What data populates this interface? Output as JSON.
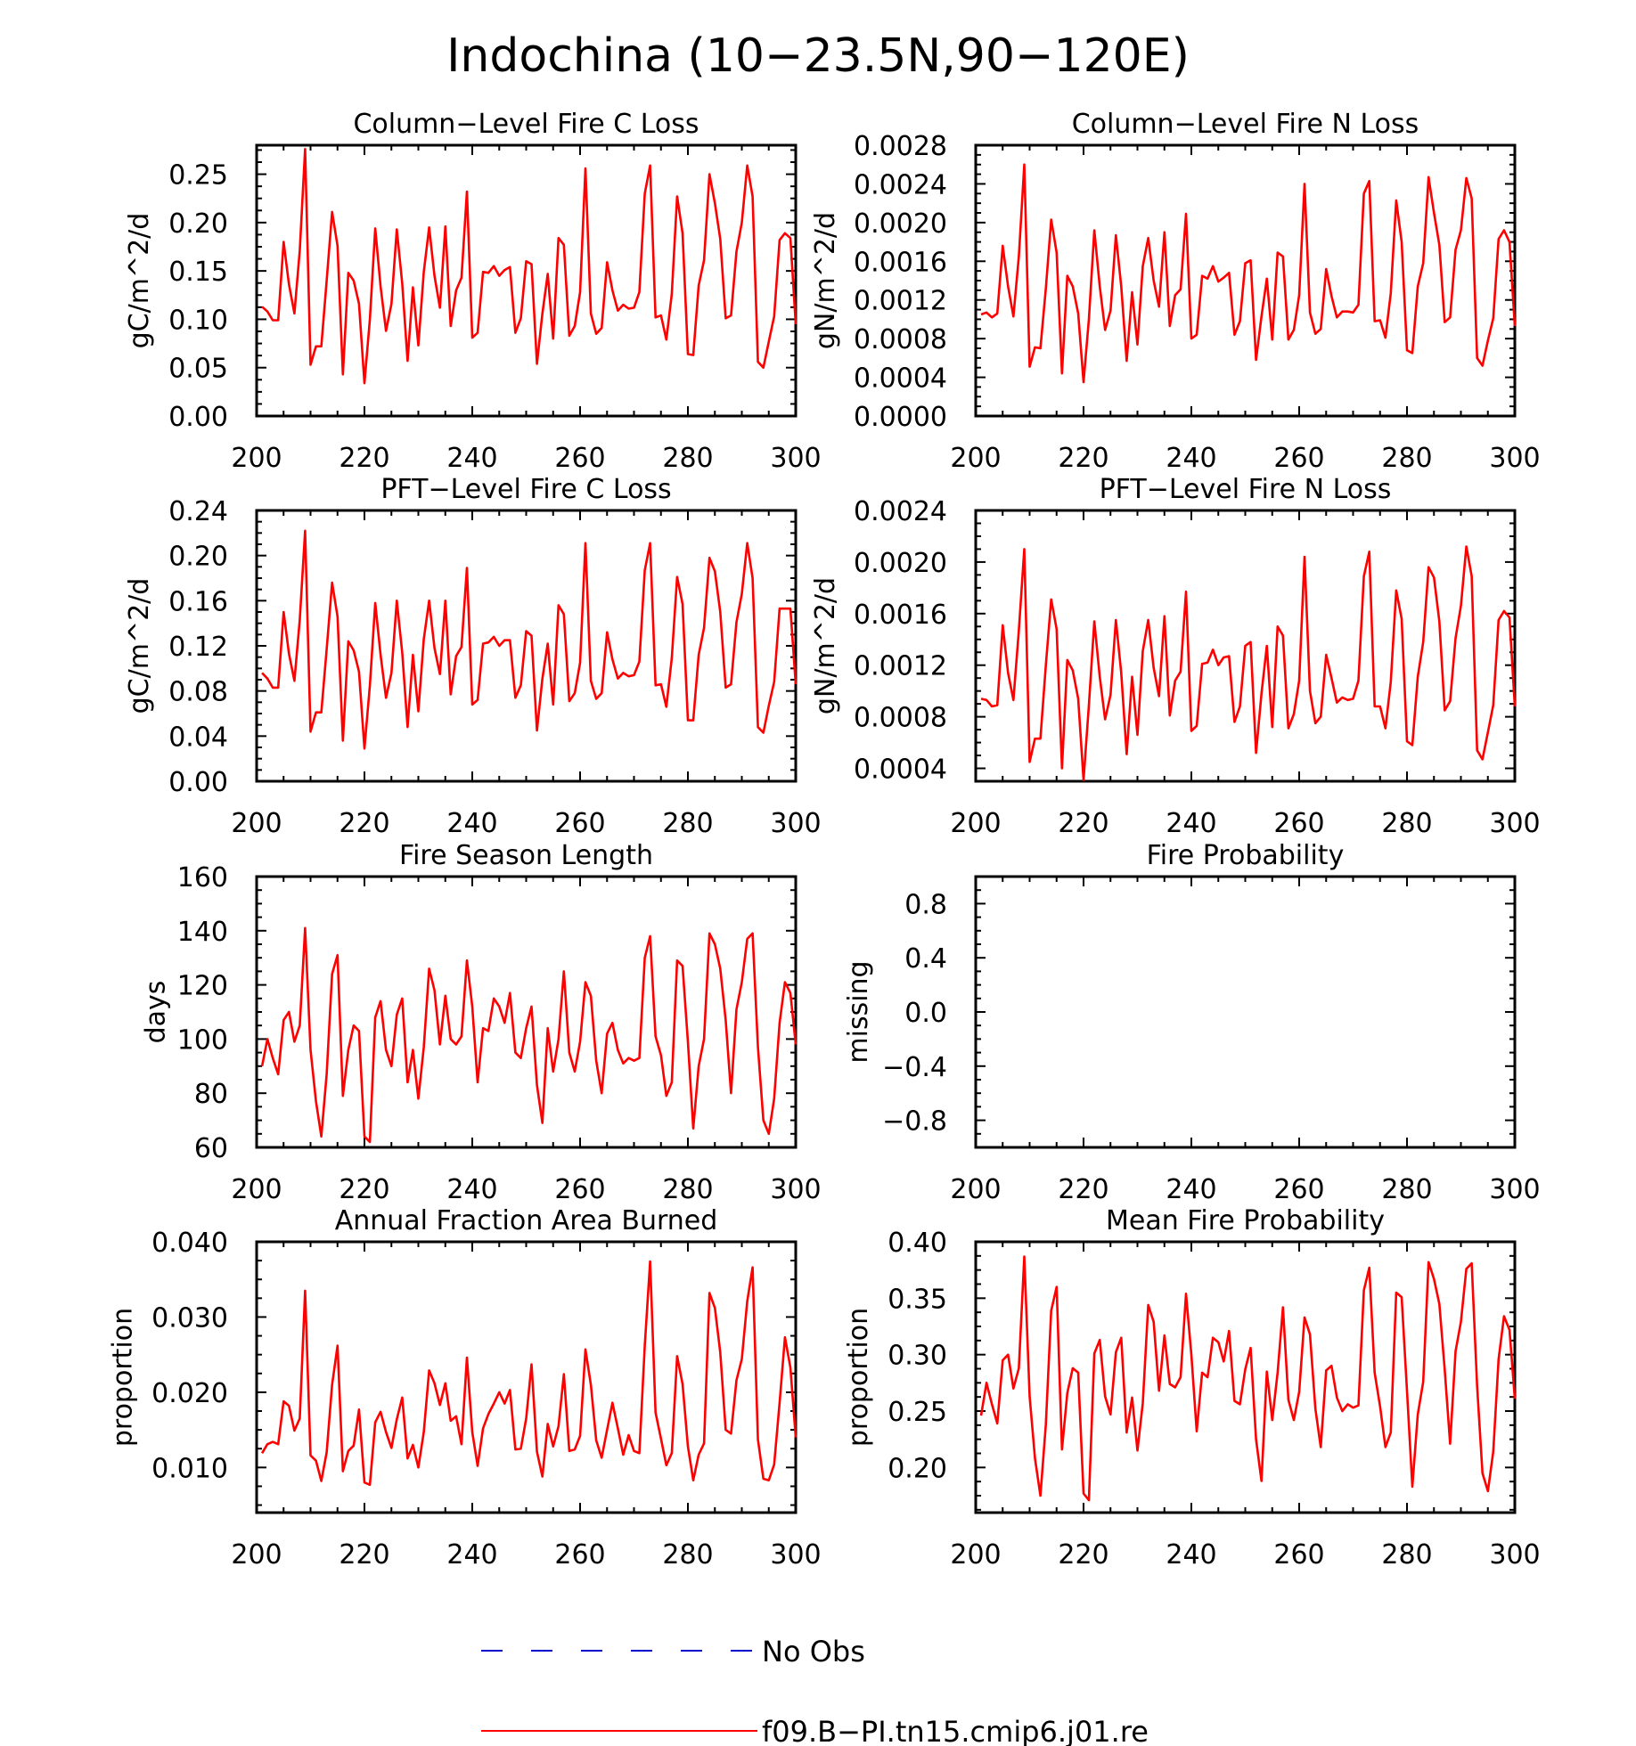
{
  "figure": {
    "title": "Indochina (10−23.5N,90−120E)",
    "legend": [
      {
        "label": "No Obs",
        "color": "#0000cc",
        "style": "dashed"
      },
      {
        "label": "f09.B−PI.tn15.cmip6.j01.re",
        "color": "#ff0000",
        "style": "solid"
      }
    ],
    "line_color": "#ff0000"
  },
  "chart_data": [
    {
      "type": "line",
      "title": "Column−Level Fire C Loss",
      "ylabel": "gC/m^2/d",
      "xlim": [
        200,
        300
      ],
      "ylim": [
        0,
        0.28
      ],
      "xticks": [
        "200",
        "220",
        "240",
        "260",
        "280",
        "300"
      ],
      "yticks": [
        "0.00",
        "0.05",
        "0.10",
        "0.15",
        "0.20",
        "0.25"
      ],
      "series": [
        {
          "x_start": 201,
          "values": [
            0.113,
            0.108,
            0.099,
            0.099,
            0.18,
            0.136,
            0.106,
            0.171,
            0.276,
            0.053,
            0.072,
            0.072,
            0.14,
            0.211,
            0.176,
            0.043,
            0.148,
            0.14,
            0.116,
            0.034,
            0.1,
            0.194,
            0.134,
            0.088,
            0.116,
            0.193,
            0.137,
            0.057,
            0.133,
            0.073,
            0.149,
            0.195,
            0.145,
            0.112,
            0.196,
            0.093,
            0.13,
            0.143,
            0.232,
            0.081,
            0.086,
            0.149,
            0.148,
            0.155,
            0.145,
            0.151,
            0.154,
            0.086,
            0.101,
            0.16,
            0.157,
            0.054,
            0.106,
            0.147,
            0.08,
            0.184,
            0.177,
            0.083,
            0.093,
            0.128,
            0.256,
            0.106,
            0.085,
            0.091,
            0.159,
            0.13,
            0.109,
            0.115,
            0.111,
            0.112,
            0.128,
            0.23,
            0.259,
            0.102,
            0.104,
            0.079,
            0.126,
            0.227,
            0.189,
            0.064,
            0.063,
            0.135,
            0.161,
            0.25,
            0.22,
            0.183,
            0.101,
            0.104,
            0.17,
            0.2,
            0.259,
            0.227,
            0.056,
            0.05,
            0.077,
            0.103,
            0.182,
            0.189,
            0.184,
            0.095
          ]
        }
      ]
    },
    {
      "type": "line",
      "title": "Column−Level Fire N Loss",
      "ylabel": "gN/m^2/d",
      "xlim": [
        200,
        300
      ],
      "ylim": [
        0,
        0.0028
      ],
      "xticks": [
        "200",
        "220",
        "240",
        "260",
        "280",
        "300"
      ],
      "yticks": [
        "0.0000",
        "0.0004",
        "0.0008",
        "0.0012",
        "0.0016",
        "0.0020",
        "0.0024",
        "0.0028"
      ],
      "series": [
        {
          "x_start": 201,
          "values": [
            0.00105,
            0.00107,
            0.00102,
            0.00106,
            0.00176,
            0.00134,
            0.00103,
            0.00165,
            0.0026,
            0.00051,
            0.00071,
            0.0007,
            0.00132,
            0.00203,
            0.00169,
            0.00044,
            0.00145,
            0.00134,
            0.00106,
            0.00035,
            0.001,
            0.00192,
            0.00134,
            0.00089,
            0.00109,
            0.00187,
            0.00134,
            0.00057,
            0.00128,
            0.00074,
            0.00155,
            0.00184,
            0.0014,
            0.00113,
            0.0019,
            0.00093,
            0.00125,
            0.00131,
            0.00209,
            0.0008,
            0.00084,
            0.00145,
            0.00142,
            0.00155,
            0.00139,
            0.00143,
            0.00148,
            0.00084,
            0.00098,
            0.00158,
            0.00161,
            0.00058,
            0.00103,
            0.00142,
            0.00079,
            0.00169,
            0.00165,
            0.00079,
            0.00089,
            0.00125,
            0.0024,
            0.00107,
            0.00085,
            0.0009,
            0.00152,
            0.00124,
            0.00102,
            0.00108,
            0.00108,
            0.00107,
            0.00115,
            0.0023,
            0.00243,
            0.00098,
            0.00099,
            0.00081,
            0.00127,
            0.00223,
            0.0018,
            0.00068,
            0.00065,
            0.00134,
            0.00158,
            0.00247,
            0.0021,
            0.00177,
            0.00097,
            0.00102,
            0.00172,
            0.00192,
            0.00246,
            0.00225,
            0.0006,
            0.00052,
            0.00078,
            0.00101,
            0.00183,
            0.00192,
            0.0018,
            0.00093
          ]
        }
      ]
    },
    {
      "type": "line",
      "title": "PFT−Level Fire C Loss",
      "ylabel": "gC/m^2/d",
      "xlim": [
        200,
        300
      ],
      "ylim": [
        0,
        0.24
      ],
      "xticks": [
        "200",
        "220",
        "240",
        "260",
        "280",
        "300"
      ],
      "yticks": [
        "0.00",
        "0.04",
        "0.08",
        "0.12",
        "0.16",
        "0.20",
        "0.24"
      ],
      "series": [
        {
          "x_start": 201,
          "values": [
            0.096,
            0.091,
            0.083,
            0.083,
            0.15,
            0.113,
            0.089,
            0.143,
            0.222,
            0.044,
            0.061,
            0.061,
            0.117,
            0.176,
            0.146,
            0.036,
            0.124,
            0.116,
            0.097,
            0.029,
            0.085,
            0.158,
            0.112,
            0.074,
            0.096,
            0.16,
            0.114,
            0.048,
            0.112,
            0.062,
            0.126,
            0.16,
            0.118,
            0.095,
            0.16,
            0.077,
            0.111,
            0.119,
            0.189,
            0.068,
            0.072,
            0.122,
            0.123,
            0.128,
            0.12,
            0.125,
            0.125,
            0.074,
            0.085,
            0.133,
            0.129,
            0.045,
            0.091,
            0.122,
            0.068,
            0.156,
            0.148,
            0.071,
            0.078,
            0.105,
            0.211,
            0.089,
            0.073,
            0.078,
            0.132,
            0.108,
            0.091,
            0.096,
            0.093,
            0.094,
            0.106,
            0.187,
            0.211,
            0.085,
            0.086,
            0.066,
            0.109,
            0.181,
            0.157,
            0.054,
            0.054,
            0.112,
            0.136,
            0.198,
            0.186,
            0.15,
            0.083,
            0.086,
            0.141,
            0.166,
            0.211,
            0.18,
            0.048,
            0.043,
            0.067,
            0.088,
            0.153,
            0.153,
            0.153,
            0.086
          ]
        }
      ]
    },
    {
      "type": "line",
      "title": "PFT−Level Fire N Loss",
      "ylabel": "gN/m^2/d",
      "xlim": [
        200,
        300
      ],
      "ylim": [
        0.0003,
        0.0024
      ],
      "xticks": [
        "200",
        "220",
        "240",
        "260",
        "280",
        "300"
      ],
      "yticks": [
        "0.0004",
        "0.0008",
        "0.0012",
        "0.0016",
        "0.0020",
        "0.0024"
      ],
      "series": [
        {
          "x_start": 201,
          "values": [
            0.00094,
            0.00093,
            0.00088,
            0.00089,
            0.00151,
            0.00114,
            0.00093,
            0.00147,
            0.0021,
            0.00045,
            0.00063,
            0.00063,
            0.0012,
            0.00171,
            0.00148,
            0.0004,
            0.00124,
            0.00116,
            0.00094,
            0.00031,
            0.00089,
            0.00154,
            0.00111,
            0.00078,
            0.00097,
            0.00155,
            0.00114,
            0.00051,
            0.00111,
            0.00066,
            0.00131,
            0.00155,
            0.00118,
            0.00096,
            0.00158,
            0.00081,
            0.00108,
            0.00115,
            0.00177,
            0.00069,
            0.00073,
            0.00121,
            0.00122,
            0.00132,
            0.0012,
            0.00126,
            0.00127,
            0.00076,
            0.00088,
            0.00135,
            0.00138,
            0.00052,
            0.00098,
            0.00135,
            0.00072,
            0.0015,
            0.00143,
            0.00071,
            0.00082,
            0.00108,
            0.00204,
            0.001,
            0.00075,
            0.0008,
            0.00128,
            0.0011,
            0.00091,
            0.00095,
            0.00093,
            0.00094,
            0.00108,
            0.00189,
            0.00208,
            0.00088,
            0.00088,
            0.00071,
            0.00107,
            0.00178,
            0.00156,
            0.00061,
            0.00058,
            0.00111,
            0.00138,
            0.00196,
            0.00188,
            0.00154,
            0.00085,
            0.00092,
            0.00141,
            0.00166,
            0.00212,
            0.00189,
            0.00054,
            0.00047,
            0.00068,
            0.00089,
            0.00155,
            0.00162,
            0.00157,
            0.00088
          ]
        }
      ]
    },
    {
      "type": "line",
      "title": "Fire Season Length",
      "ylabel": "days",
      "xlim": [
        200,
        300
      ],
      "ylim": [
        60,
        160
      ],
      "xticks": [
        "200",
        "220",
        "240",
        "260",
        "280",
        "300"
      ],
      "yticks": [
        "60",
        "80",
        "100",
        "120",
        "140",
        "160"
      ],
      "series": [
        {
          "x_start": 201,
          "values": [
            90,
            100,
            93,
            87,
            107,
            110,
            99,
            105,
            141,
            96,
            77,
            64,
            87,
            124,
            131,
            79,
            96,
            105,
            103,
            64,
            62,
            108,
            114,
            96,
            90,
            109,
            115,
            84,
            96,
            78,
            97,
            126,
            118,
            98,
            116,
            100,
            98,
            101,
            129,
            112,
            84,
            104,
            103,
            115,
            112,
            106,
            117,
            95,
            93,
            104,
            112,
            83,
            69,
            104,
            88,
            100,
            125,
            95,
            88,
            99,
            121,
            116,
            92,
            80,
            102,
            106,
            96,
            91,
            93,
            92,
            93,
            130,
            138,
            101,
            94,
            79,
            84,
            129,
            127,
            99,
            67,
            90,
            100,
            139,
            135,
            126,
            107,
            80,
            111,
            121,
            137,
            139,
            97,
            70,
            65,
            78,
            106,
            121,
            117,
            98
          ]
        }
      ]
    },
    {
      "type": "line",
      "title": "Fire Probability",
      "ylabel": "missing",
      "xlim": [
        200,
        300
      ],
      "ylim": [
        -1,
        1
      ],
      "xticks": [
        "200",
        "220",
        "240",
        "260",
        "280",
        "300"
      ],
      "yticks": [
        "−0.8",
        "−0.4",
        "0.0",
        "0.4",
        "0.8"
      ],
      "series": []
    },
    {
      "type": "line",
      "title": "Annual Fraction Area Burned",
      "ylabel": "proportion",
      "xlim": [
        200,
        300
      ],
      "ylim": [
        0.004,
        0.04
      ],
      "xticks": [
        "200",
        "220",
        "240",
        "260",
        "280",
        "300"
      ],
      "yticks": [
        "0.010",
        "0.020",
        "0.030",
        "0.040"
      ],
      "series": [
        {
          "x_start": 201,
          "values": [
            0.0119,
            0.0131,
            0.0134,
            0.0131,
            0.0188,
            0.0182,
            0.0149,
            0.0165,
            0.0335,
            0.0116,
            0.0109,
            0.0082,
            0.012,
            0.021,
            0.0262,
            0.0095,
            0.0122,
            0.0129,
            0.0177,
            0.008,
            0.0077,
            0.016,
            0.0174,
            0.0147,
            0.0126,
            0.0164,
            0.0193,
            0.0112,
            0.013,
            0.01,
            0.0147,
            0.0229,
            0.0212,
            0.0183,
            0.0212,
            0.0162,
            0.0168,
            0.0131,
            0.0246,
            0.0147,
            0.0102,
            0.0152,
            0.0171,
            0.0185,
            0.02,
            0.0185,
            0.0203,
            0.0124,
            0.0125,
            0.0165,
            0.0237,
            0.0121,
            0.0088,
            0.0158,
            0.0128,
            0.0155,
            0.0224,
            0.0122,
            0.0124,
            0.0142,
            0.0257,
            0.021,
            0.0136,
            0.0113,
            0.015,
            0.0186,
            0.0152,
            0.0117,
            0.0143,
            0.0122,
            0.0119,
            0.0262,
            0.0374,
            0.0173,
            0.0138,
            0.0103,
            0.0119,
            0.0248,
            0.0211,
            0.0128,
            0.0083,
            0.0117,
            0.0132,
            0.0332,
            0.0312,
            0.0253,
            0.015,
            0.0145,
            0.0216,
            0.0244,
            0.0321,
            0.0366,
            0.0137,
            0.0085,
            0.0083,
            0.0104,
            0.0186,
            0.0273,
            0.0233,
            0.014
          ]
        }
      ]
    },
    {
      "type": "line",
      "title": "Mean Fire Probability",
      "ylabel": "proportion",
      "xlim": [
        200,
        300
      ],
      "ylim": [
        0.16,
        0.4
      ],
      "xticks": [
        "200",
        "220",
        "240",
        "260",
        "280",
        "300"
      ],
      "yticks": [
        "0.20",
        "0.25",
        "0.30",
        "0.35",
        "0.40"
      ],
      "series": [
        {
          "x_start": 201,
          "values": [
            0.246,
            0.275,
            0.256,
            0.239,
            0.295,
            0.3,
            0.27,
            0.288,
            0.387,
            0.263,
            0.208,
            0.175,
            0.238,
            0.339,
            0.36,
            0.216,
            0.266,
            0.288,
            0.284,
            0.177,
            0.171,
            0.301,
            0.313,
            0.263,
            0.247,
            0.302,
            0.315,
            0.231,
            0.262,
            0.215,
            0.257,
            0.344,
            0.329,
            0.268,
            0.317,
            0.274,
            0.271,
            0.28,
            0.354,
            0.3,
            0.232,
            0.284,
            0.28,
            0.315,
            0.311,
            0.294,
            0.321,
            0.259,
            0.256,
            0.287,
            0.306,
            0.225,
            0.188,
            0.285,
            0.242,
            0.284,
            0.342,
            0.26,
            0.242,
            0.267,
            0.333,
            0.318,
            0.252,
            0.218,
            0.286,
            0.29,
            0.262,
            0.25,
            0.256,
            0.253,
            0.255,
            0.357,
            0.377,
            0.284,
            0.254,
            0.218,
            0.231,
            0.355,
            0.351,
            0.268,
            0.183,
            0.247,
            0.276,
            0.382,
            0.367,
            0.345,
            0.287,
            0.221,
            0.303,
            0.329,
            0.376,
            0.381,
            0.272,
            0.195,
            0.179,
            0.214,
            0.296,
            0.334,
            0.322,
            0.261
          ]
        }
      ]
    }
  ]
}
